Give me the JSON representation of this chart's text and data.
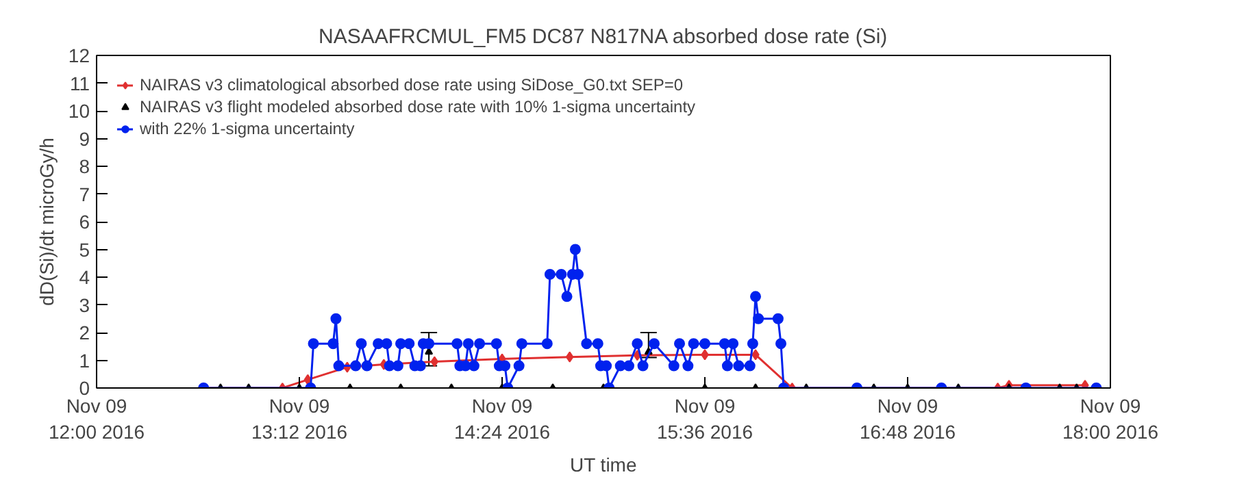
{
  "chart_data": {
    "type": "line",
    "title": "NASAAFRCMUL_FM5 DC87 N817NA absorbed dose rate (Si)",
    "xlabel": "UT time",
    "ylabel": "dD(Si)/dt microGy/h",
    "xlim": [
      "2016-11-09T12:00",
      "2016-11-09T18:00"
    ],
    "ylim": [
      0,
      12
    ],
    "xticks": [
      {
        "value": "2016-11-09T12:00",
        "label": "Nov 09\n12:00 2016"
      },
      {
        "value": "2016-11-09T13:12",
        "label": "Nov 09\n13:12 2016"
      },
      {
        "value": "2016-11-09T14:24",
        "label": "Nov 09\n14:24 2016"
      },
      {
        "value": "2016-11-09T15:36",
        "label": "Nov 09\n15:36 2016"
      },
      {
        "value": "2016-11-09T16:48",
        "label": "Nov 09\n16:48 2016"
      },
      {
        "value": "2016-11-09T18:00",
        "label": "Nov 09\n18:00 2016"
      }
    ],
    "yticks": [
      0,
      1,
      2,
      3,
      4,
      5,
      6,
      7,
      8,
      9,
      10,
      11,
      12
    ],
    "grid": false,
    "legend": "top left",
    "series": [
      {
        "name": "NAIRAS v3 climatological absorbed dose rate using SiDose_G0.txt SEP=0",
        "marker": "diamond",
        "color": "#e03030",
        "x": [
          "2016-11-09T12:38",
          "2016-11-09T13:06",
          "2016-11-09T13:15",
          "2016-11-09T13:29",
          "2016-11-09T13:42",
          "2016-11-09T14:00",
          "2016-11-09T14:24",
          "2016-11-09T14:48",
          "2016-11-09T15:12",
          "2016-11-09T15:36",
          "2016-11-09T15:54",
          "2016-11-09T16:07",
          "2016-11-09T17:20",
          "2016-11-09T17:24",
          "2016-11-09T17:51"
        ],
        "values": [
          0,
          0,
          0.3,
          0.75,
          0.85,
          0.95,
          1.05,
          1.12,
          1.18,
          1.2,
          1.2,
          0,
          0,
          0.1,
          0.1
        ]
      },
      {
        "name": "NAIRAS v3 flight modeled absorbed dose rate with 10% 1-sigma uncertainty",
        "type": "scatter",
        "marker": "triangle",
        "color": "#000000",
        "x": [
          "2016-11-09T12:44",
          "2016-11-09T12:54",
          "2016-11-09T13:12",
          "2016-11-09T13:30",
          "2016-11-09T13:48",
          "2016-11-09T13:58",
          "2016-11-09T14:06",
          "2016-11-09T14:24",
          "2016-11-09T14:42",
          "2016-11-09T15:00",
          "2016-11-09T15:16",
          "2016-11-09T15:36",
          "2016-11-09T15:54",
          "2016-11-09T16:12",
          "2016-11-09T16:36",
          "2016-11-09T16:48",
          "2016-11-09T17:06",
          "2016-11-09T17:24",
          "2016-11-09T17:42",
          "2016-11-09T17:48"
        ],
        "values": [
          0,
          0,
          0,
          0,
          0,
          1.3,
          0,
          0,
          0,
          0,
          1.3,
          0,
          0,
          0,
          0,
          0,
          0,
          0,
          0,
          0
        ],
        "errors": [
          null,
          null,
          null,
          null,
          null,
          [
            0.8,
            2.0
          ],
          null,
          null,
          null,
          null,
          [
            1.1,
            2.0
          ],
          null,
          null,
          null,
          null,
          null,
          null,
          null,
          null,
          null
        ]
      },
      {
        "name": "with 22% 1-sigma uncertainty",
        "marker": "circle",
        "color": "#0022ee",
        "x": [
          "2016-11-09T12:38",
          "2016-11-09T13:16",
          "2016-11-09T13:17",
          "2016-11-09T13:24",
          "2016-11-09T13:25",
          "2016-11-09T13:26",
          "2016-11-09T13:32",
          "2016-11-09T13:34",
          "2016-11-09T13:36",
          "2016-11-09T13:40",
          "2016-11-09T13:43",
          "2016-11-09T13:44",
          "2016-11-09T13:47",
          "2016-11-09T13:48",
          "2016-11-09T13:51",
          "2016-11-09T13:53",
          "2016-11-09T13:55",
          "2016-11-09T13:56",
          "2016-11-09T13:58",
          "2016-11-09T14:08",
          "2016-11-09T14:09",
          "2016-11-09T14:11",
          "2016-11-09T14:12",
          "2016-11-09T14:14",
          "2016-11-09T14:16",
          "2016-11-09T14:22",
          "2016-11-09T14:23",
          "2016-11-09T14:25",
          "2016-11-09T14:26",
          "2016-11-09T14:30",
          "2016-11-09T14:31",
          "2016-11-09T14:40",
          "2016-11-09T14:41",
          "2016-11-09T14:45",
          "2016-11-09T14:47",
          "2016-11-09T14:49",
          "2016-11-09T14:50",
          "2016-11-09T14:51",
          "2016-11-09T14:54",
          "2016-11-09T14:58",
          "2016-11-09T14:59",
          "2016-11-09T15:01",
          "2016-11-09T15:02",
          "2016-11-09T15:06",
          "2016-11-09T15:09",
          "2016-11-09T15:12",
          "2016-11-09T15:14",
          "2016-11-09T15:18",
          "2016-11-09T15:25",
          "2016-11-09T15:27",
          "2016-11-09T15:30",
          "2016-11-09T15:32",
          "2016-11-09T15:36",
          "2016-11-09T15:43",
          "2016-11-09T15:44",
          "2016-11-09T15:46",
          "2016-11-09T15:48",
          "2016-11-09T15:52",
          "2016-11-09T15:53",
          "2016-11-09T15:54",
          "2016-11-09T15:55",
          "2016-11-09T16:02",
          "2016-11-09T16:03",
          "2016-11-09T16:04",
          "2016-11-09T16:30",
          "2016-11-09T17:00",
          "2016-11-09T17:30",
          "2016-11-09T17:55"
        ],
        "values": [
          0,
          0,
          1.6,
          1.6,
          2.5,
          0.8,
          0.8,
          1.6,
          0.8,
          1.6,
          1.6,
          0.8,
          0.8,
          1.6,
          1.6,
          0.8,
          0.8,
          1.6,
          1.6,
          1.6,
          0.8,
          0.8,
          1.6,
          0.8,
          1.6,
          1.6,
          0.8,
          0.8,
          0,
          0.8,
          1.6,
          1.6,
          4.1,
          4.1,
          3.3,
          4.1,
          5.0,
          4.1,
          1.6,
          1.6,
          0.8,
          0.8,
          0,
          0.8,
          0.8,
          1.6,
          0.8,
          1.6,
          0.8,
          1.6,
          0.8,
          1.6,
          1.6,
          1.6,
          0.8,
          1.6,
          0.8,
          0.8,
          1.6,
          3.3,
          2.5,
          2.5,
          1.6,
          0,
          0,
          0,
          0,
          0
        ]
      }
    ]
  }
}
